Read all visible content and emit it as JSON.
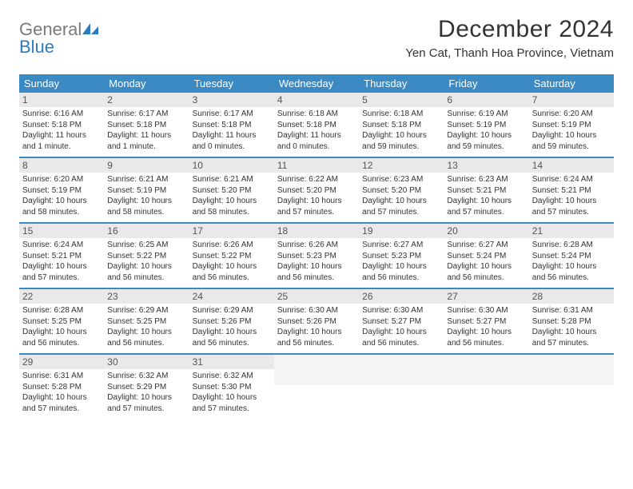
{
  "logo": {
    "text_general": "General",
    "text_blue": "Blue",
    "icon_color": "#2b7bbf",
    "text_general_color": "#7a7a7a",
    "text_blue_color": "#2b7bbf"
  },
  "title": "December 2024",
  "subtitle": "Yen Cat, Thanh Hoa Province, Vietnam",
  "colors": {
    "header_bar": "#3b8ac4",
    "header_text": "#ffffff",
    "daynum_bg": "#e9e9e9",
    "daynum_fg": "#555555",
    "week_divider": "#3b8ac4",
    "body_text": "#333333",
    "empty_bg": "#f4f4f4"
  },
  "typography": {
    "title_fontsize": 30,
    "subtitle_fontsize": 15,
    "weekday_fontsize": 13,
    "daynum_fontsize": 12,
    "body_fontsize": 10
  },
  "weekdays": [
    "Sunday",
    "Monday",
    "Tuesday",
    "Wednesday",
    "Thursday",
    "Friday",
    "Saturday"
  ],
  "weeks": [
    [
      {
        "day": "1",
        "sunrise": "Sunrise: 6:16 AM",
        "sunset": "Sunset: 5:18 PM",
        "daylight": "Daylight: 11 hours and 1 minute."
      },
      {
        "day": "2",
        "sunrise": "Sunrise: 6:17 AM",
        "sunset": "Sunset: 5:18 PM",
        "daylight": "Daylight: 11 hours and 1 minute."
      },
      {
        "day": "3",
        "sunrise": "Sunrise: 6:17 AM",
        "sunset": "Sunset: 5:18 PM",
        "daylight": "Daylight: 11 hours and 0 minutes."
      },
      {
        "day": "4",
        "sunrise": "Sunrise: 6:18 AM",
        "sunset": "Sunset: 5:18 PM",
        "daylight": "Daylight: 11 hours and 0 minutes."
      },
      {
        "day": "5",
        "sunrise": "Sunrise: 6:18 AM",
        "sunset": "Sunset: 5:18 PM",
        "daylight": "Daylight: 10 hours and 59 minutes."
      },
      {
        "day": "6",
        "sunrise": "Sunrise: 6:19 AM",
        "sunset": "Sunset: 5:19 PM",
        "daylight": "Daylight: 10 hours and 59 minutes."
      },
      {
        "day": "7",
        "sunrise": "Sunrise: 6:20 AM",
        "sunset": "Sunset: 5:19 PM",
        "daylight": "Daylight: 10 hours and 59 minutes."
      }
    ],
    [
      {
        "day": "8",
        "sunrise": "Sunrise: 6:20 AM",
        "sunset": "Sunset: 5:19 PM",
        "daylight": "Daylight: 10 hours and 58 minutes."
      },
      {
        "day": "9",
        "sunrise": "Sunrise: 6:21 AM",
        "sunset": "Sunset: 5:19 PM",
        "daylight": "Daylight: 10 hours and 58 minutes."
      },
      {
        "day": "10",
        "sunrise": "Sunrise: 6:21 AM",
        "sunset": "Sunset: 5:20 PM",
        "daylight": "Daylight: 10 hours and 58 minutes."
      },
      {
        "day": "11",
        "sunrise": "Sunrise: 6:22 AM",
        "sunset": "Sunset: 5:20 PM",
        "daylight": "Daylight: 10 hours and 57 minutes."
      },
      {
        "day": "12",
        "sunrise": "Sunrise: 6:23 AM",
        "sunset": "Sunset: 5:20 PM",
        "daylight": "Daylight: 10 hours and 57 minutes."
      },
      {
        "day": "13",
        "sunrise": "Sunrise: 6:23 AM",
        "sunset": "Sunset: 5:21 PM",
        "daylight": "Daylight: 10 hours and 57 minutes."
      },
      {
        "day": "14",
        "sunrise": "Sunrise: 6:24 AM",
        "sunset": "Sunset: 5:21 PM",
        "daylight": "Daylight: 10 hours and 57 minutes."
      }
    ],
    [
      {
        "day": "15",
        "sunrise": "Sunrise: 6:24 AM",
        "sunset": "Sunset: 5:21 PM",
        "daylight": "Daylight: 10 hours and 57 minutes."
      },
      {
        "day": "16",
        "sunrise": "Sunrise: 6:25 AM",
        "sunset": "Sunset: 5:22 PM",
        "daylight": "Daylight: 10 hours and 56 minutes."
      },
      {
        "day": "17",
        "sunrise": "Sunrise: 6:26 AM",
        "sunset": "Sunset: 5:22 PM",
        "daylight": "Daylight: 10 hours and 56 minutes."
      },
      {
        "day": "18",
        "sunrise": "Sunrise: 6:26 AM",
        "sunset": "Sunset: 5:23 PM",
        "daylight": "Daylight: 10 hours and 56 minutes."
      },
      {
        "day": "19",
        "sunrise": "Sunrise: 6:27 AM",
        "sunset": "Sunset: 5:23 PM",
        "daylight": "Daylight: 10 hours and 56 minutes."
      },
      {
        "day": "20",
        "sunrise": "Sunrise: 6:27 AM",
        "sunset": "Sunset: 5:24 PM",
        "daylight": "Daylight: 10 hours and 56 minutes."
      },
      {
        "day": "21",
        "sunrise": "Sunrise: 6:28 AM",
        "sunset": "Sunset: 5:24 PM",
        "daylight": "Daylight: 10 hours and 56 minutes."
      }
    ],
    [
      {
        "day": "22",
        "sunrise": "Sunrise: 6:28 AM",
        "sunset": "Sunset: 5:25 PM",
        "daylight": "Daylight: 10 hours and 56 minutes."
      },
      {
        "day": "23",
        "sunrise": "Sunrise: 6:29 AM",
        "sunset": "Sunset: 5:25 PM",
        "daylight": "Daylight: 10 hours and 56 minutes."
      },
      {
        "day": "24",
        "sunrise": "Sunrise: 6:29 AM",
        "sunset": "Sunset: 5:26 PM",
        "daylight": "Daylight: 10 hours and 56 minutes."
      },
      {
        "day": "25",
        "sunrise": "Sunrise: 6:30 AM",
        "sunset": "Sunset: 5:26 PM",
        "daylight": "Daylight: 10 hours and 56 minutes."
      },
      {
        "day": "26",
        "sunrise": "Sunrise: 6:30 AM",
        "sunset": "Sunset: 5:27 PM",
        "daylight": "Daylight: 10 hours and 56 minutes."
      },
      {
        "day": "27",
        "sunrise": "Sunrise: 6:30 AM",
        "sunset": "Sunset: 5:27 PM",
        "daylight": "Daylight: 10 hours and 56 minutes."
      },
      {
        "day": "28",
        "sunrise": "Sunrise: 6:31 AM",
        "sunset": "Sunset: 5:28 PM",
        "daylight": "Daylight: 10 hours and 57 minutes."
      }
    ],
    [
      {
        "day": "29",
        "sunrise": "Sunrise: 6:31 AM",
        "sunset": "Sunset: 5:28 PM",
        "daylight": "Daylight: 10 hours and 57 minutes."
      },
      {
        "day": "30",
        "sunrise": "Sunrise: 6:32 AM",
        "sunset": "Sunset: 5:29 PM",
        "daylight": "Daylight: 10 hours and 57 minutes."
      },
      {
        "day": "31",
        "sunrise": "Sunrise: 6:32 AM",
        "sunset": "Sunset: 5:30 PM",
        "daylight": "Daylight: 10 hours and 57 minutes."
      },
      {
        "empty": true
      },
      {
        "empty": true
      },
      {
        "empty": true
      },
      {
        "empty": true
      }
    ]
  ]
}
